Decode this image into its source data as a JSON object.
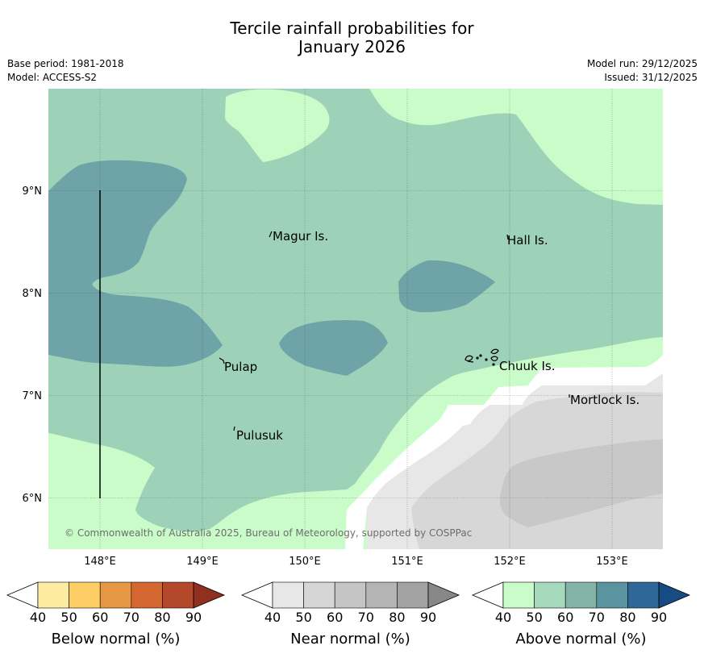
{
  "header": {
    "title_line1": "Tercile rainfall probabilities for",
    "title_line2": "January 2026",
    "base_period": "Base period: 1981-2018",
    "model": "Model: ACCESS-S2",
    "model_run": "Model run: 29/12/2025",
    "issued": "Issued: 31/12/2025"
  },
  "map": {
    "lat_labels": [
      "9°N",
      "8°N",
      "7°N",
      "6°N"
    ],
    "lon_labels": [
      "148°E",
      "149°E",
      "150°E",
      "151°E",
      "152°E",
      "153°E"
    ],
    "places": [
      "Magur Is.",
      "Hall Is.",
      "Pulap",
      "Chuuk Is.",
      "Mortlock Is.",
      "Pulusuk"
    ],
    "copyright": "© Commonwealth of Australia 2025, Bureau of Meteorology, supported by COSPPac",
    "colors": {
      "above_40": "#c9fcc9",
      "above_50": "#9dd2b9",
      "above_60": "#6ea4a8",
      "near_40": "#e7e7e7",
      "near_50": "#d7d7d7",
      "near_60": "#c8c8c8"
    }
  },
  "colorbars": [
    {
      "title": "Below normal (%)",
      "ticks": [
        "40",
        "50",
        "60",
        "70",
        "80",
        "90"
      ],
      "colors": [
        "#ffffff",
        "#feeba2",
        "#fdcd66",
        "#e69744",
        "#d4672f",
        "#b3492a",
        "#8f3020"
      ]
    },
    {
      "title": "Near normal (%)",
      "ticks": [
        "40",
        "50",
        "60",
        "70",
        "80",
        "90"
      ],
      "colors": [
        "#ffffff",
        "#e7e7e7",
        "#d6d6d6",
        "#c5c5c5",
        "#b4b4b4",
        "#a2a2a2",
        "#878787"
      ]
    },
    {
      "title": "Above normal (%)",
      "ticks": [
        "40",
        "50",
        "60",
        "70",
        "80",
        "90"
      ],
      "colors": [
        "#ffffff",
        "#c9fcc9",
        "#a6d9bc",
        "#84b4a6",
        "#5a94a0",
        "#306799",
        "#174c82"
      ]
    }
  ]
}
